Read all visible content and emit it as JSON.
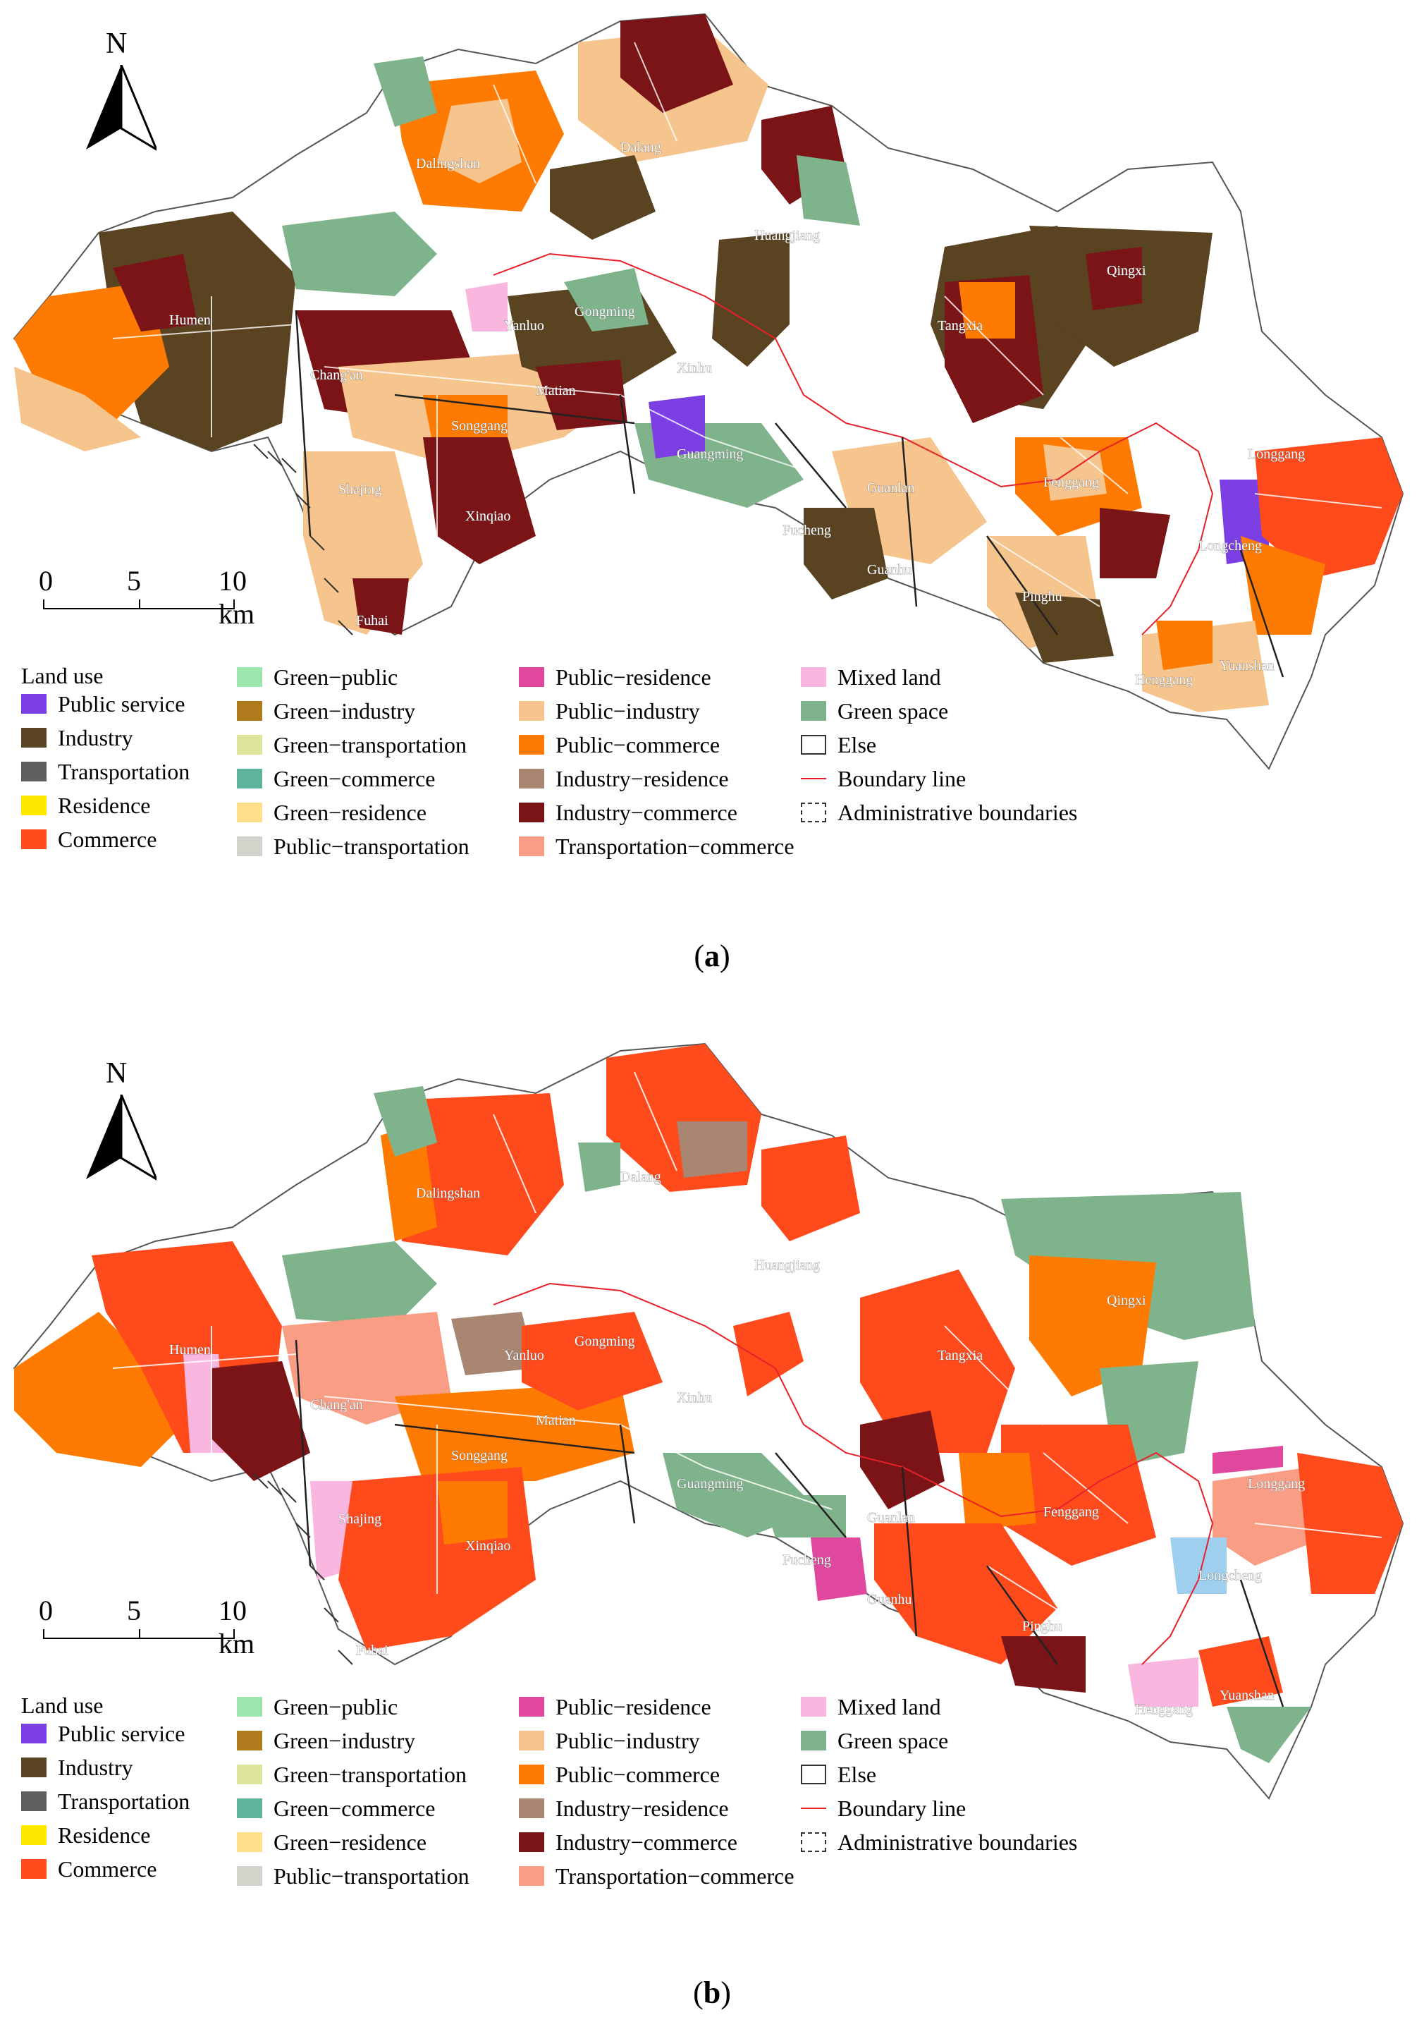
{
  "north_label": "N",
  "scale": {
    "ticks": [
      "0",
      "5",
      "10 km"
    ]
  },
  "legend": {
    "title": "Land use",
    "items": [
      {
        "label": "Public service",
        "color": "#7b3fe4"
      },
      {
        "label": "Industry",
        "color": "#5a4320"
      },
      {
        "label": "Transportation",
        "color": "#5f5f5f"
      },
      {
        "label": "Residence",
        "color": "#ffe800"
      },
      {
        "label": "Commerce",
        "color": "#ff4a1c"
      },
      {
        "label": "Green−public",
        "color": "#9ee6b0"
      },
      {
        "label": "Green−industry",
        "color": "#b07a1e"
      },
      {
        "label": "Green−transportation",
        "color": "#dde49a"
      },
      {
        "label": "Green−commerce",
        "color": "#5fb39a"
      },
      {
        "label": "Green−residence",
        "color": "#ffe08a"
      },
      {
        "label": "Public−transportation",
        "color": "#d3d3cc"
      },
      {
        "label": "Public−residence",
        "color": "#e0489e"
      },
      {
        "label": "Public−industry",
        "color": "#f6c48d"
      },
      {
        "label": "Public−commerce",
        "color": "#ff7a00"
      },
      {
        "label": "Industry−residence",
        "color": "#a88672"
      },
      {
        "label": "Industry−commerce",
        "color": "#7a1416"
      },
      {
        "label": "Transportation−commerce",
        "color": "#f99e85"
      },
      {
        "label": "Mixed land",
        "color": "#f9b6df"
      },
      {
        "label": "Green space",
        "color": "#7fb38b"
      },
      {
        "label": "Else",
        "color": "#ffffff"
      },
      {
        "label": "Boundary line",
        "color": "#e8202a"
      },
      {
        "label": "Administrative boundaries",
        "color": "#333333"
      }
    ]
  },
  "place_names": [
    "Dalingshan",
    "Dalang",
    "Huangjiang",
    "Qingxi",
    "Humen",
    "Yanluo",
    "Gongming",
    "Xinhu",
    "Tangxia",
    "Chang'an",
    "Matian",
    "Songgang",
    "Guangming",
    "Shajing",
    "Xinqiao",
    "Guanlan",
    "Fenggang",
    "Longgang",
    "Fucheng",
    "Longcheng",
    "Guanhu",
    "Pinghu",
    "Fuhai",
    "Henggang",
    "Yuanshan"
  ],
  "panels": [
    {
      "caption_letter": "a",
      "dominant_colors": [
        "#5a4320",
        "#f6c48d",
        "#ff7a00",
        "#7a1416",
        "#7fb38b",
        "#7b3fe4",
        "#ff4a1c"
      ]
    },
    {
      "caption_letter": "b",
      "dominant_colors": [
        "#ff4a1c",
        "#ff7a00",
        "#7fb38b",
        "#f99e85",
        "#7a1416",
        "#f9b6df",
        "#a88672"
      ]
    }
  ]
}
